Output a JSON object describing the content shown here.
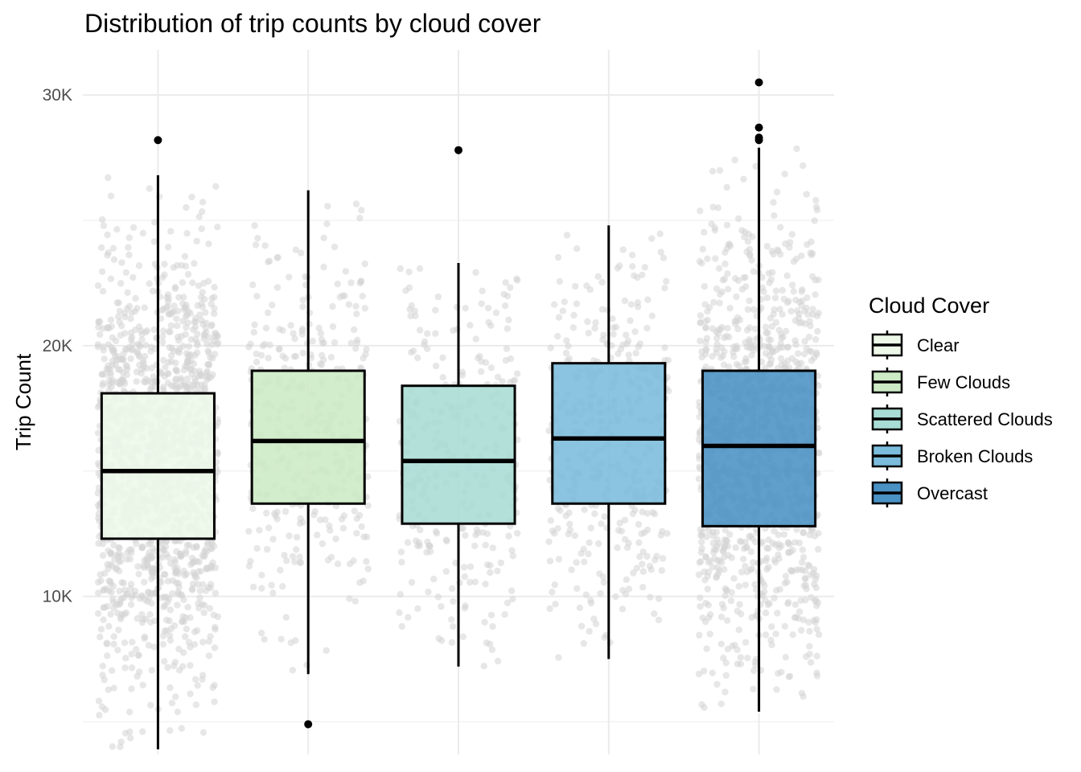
{
  "chart_data": {
    "type": "boxplot",
    "title": "Distribution of trip counts by cloud cover",
    "xlabel": "",
    "ylabel": "Trip Count",
    "ylim": [
      3700,
      31800
    ],
    "yticks": [
      10000,
      20000,
      30000
    ],
    "ytick_labels": [
      "10K",
      "20K",
      "30K"
    ],
    "grid": true,
    "legend_title": "Cloud Cover",
    "legend_position": "right",
    "categories": [
      "Clear",
      "Few Clouds",
      "Scattered Clouds",
      "Broken Clouds",
      "Overcast"
    ],
    "colors": [
      "#EDF8E9",
      "#CCEBC5",
      "#A8DDD5",
      "#7BBCDC",
      "#4A91C4"
    ],
    "boxes": [
      {
        "category": "Clear",
        "min": 3900,
        "q1": 12300,
        "median": 15000,
        "q3": 18100,
        "max": 26800,
        "outliers": [
          28200
        ]
      },
      {
        "category": "Few Clouds",
        "min": 6900,
        "q1": 13700,
        "median": 16200,
        "q3": 19000,
        "max": 26200,
        "outliers": [
          4900
        ]
      },
      {
        "category": "Scattered Clouds",
        "min": 7200,
        "q1": 12900,
        "median": 15400,
        "q3": 18400,
        "max": 23300,
        "outliers": [
          27800
        ]
      },
      {
        "category": "Broken Clouds",
        "min": 7500,
        "q1": 13700,
        "median": 16300,
        "q3": 19300,
        "max": 24800,
        "outliers": []
      },
      {
        "category": "Overcast",
        "min": 5400,
        "q1": 12800,
        "median": 16000,
        "q3": 19000,
        "max": 27900,
        "outliers": [
          28200,
          28300,
          28700,
          30500
        ]
      }
    ],
    "jitter_points_per_group": [
      1500,
      360,
      300,
      380,
      1100
    ],
    "jitter_color": "#d3d3d3"
  }
}
